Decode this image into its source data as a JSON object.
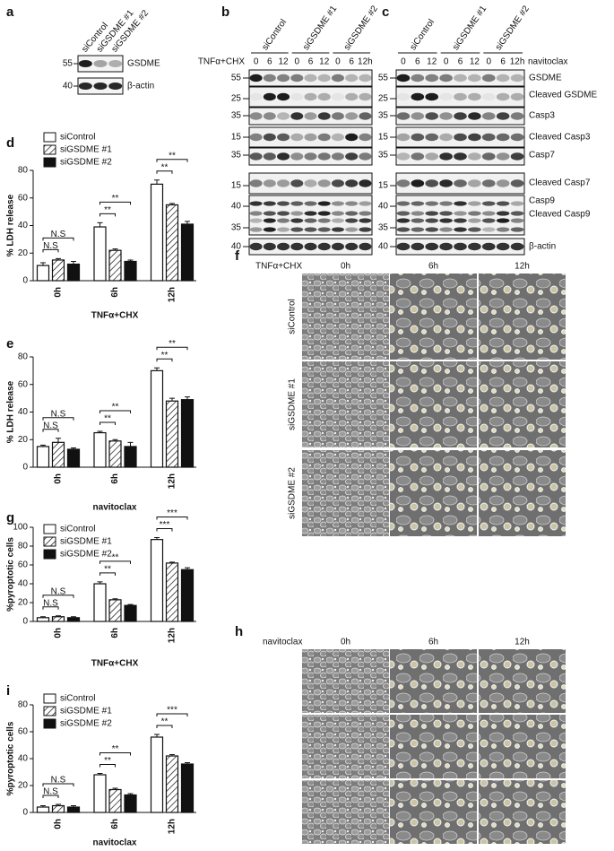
{
  "panel_labels": [
    "a",
    "b",
    "c",
    "d",
    "e",
    "f",
    "g",
    "h",
    "i"
  ],
  "blot_a": {
    "lanes": [
      "siControl",
      "siGSDME #1",
      "siGSDME #2"
    ],
    "markers": [
      55,
      40
    ],
    "bands": [
      "GSDME",
      "β-actin"
    ]
  },
  "blot_b": {
    "treatment": "TNFα+CHX",
    "groups": [
      "siControl",
      "siGSDME #1",
      "siGSDME #2"
    ],
    "lanes": [
      "0",
      "6",
      "12",
      "0",
      "6",
      "12",
      "0",
      "6",
      "12h"
    ],
    "markers": [
      55,
      25,
      35,
      15,
      35,
      15,
      40,
      35,
      40
    ]
  },
  "blot_c": {
    "treatment": "navitoclax",
    "groups": [
      "siControl",
      "siGSDME #1",
      "siGSDME #2"
    ],
    "lanes": [
      "0",
      "6",
      "12",
      "0",
      "6",
      "12",
      "0",
      "6",
      "12h"
    ],
    "markers": [
      55,
      25,
      35,
      15,
      35,
      15,
      40,
      35,
      40
    ],
    "bands": [
      "GSDME",
      "Cleaved GSDME",
      "Casp3",
      "Cleaved Casp3",
      "Casp7",
      "Cleaved Casp7",
      "Casp9",
      "Cleaved Casp9",
      "β-actin"
    ]
  },
  "chart_data": [
    {
      "type": "bar",
      "ylabel": "% LDH release",
      "xlabel": "TNFα+CHX",
      "categories": [
        "0h",
        "6h",
        "12h"
      ],
      "ylim": [
        0,
        80
      ],
      "yticks": [
        0,
        20,
        40,
        60,
        80
      ],
      "legend": true,
      "series": [
        {
          "name": "siControl",
          "color": "#ffffff",
          "hatch": false,
          "values": [
            11,
            39,
            70
          ],
          "errors": [
            2,
            3,
            3
          ]
        },
        {
          "name": "siGSDME #1",
          "color": "#ffffff",
          "hatch": true,
          "values": [
            15,
            22,
            55
          ],
          "errors": [
            1,
            1,
            1
          ]
        },
        {
          "name": "siGSDME #2",
          "color": "#111111",
          "hatch": false,
          "values": [
            12,
            14,
            41
          ],
          "errors": [
            2,
            1,
            2
          ]
        }
      ],
      "significance": [
        {
          "category": "0h",
          "pair": [
            "siControl",
            "siGSDME #1"
          ],
          "label": "N.S"
        },
        {
          "category": "0h",
          "pair": [
            "siControl",
            "siGSDME #2"
          ],
          "label": "N.S"
        },
        {
          "category": "6h",
          "pair": [
            "siControl",
            "siGSDME #1"
          ],
          "label": "**"
        },
        {
          "category": "6h",
          "pair": [
            "siControl",
            "siGSDME #2"
          ],
          "label": "**"
        },
        {
          "category": "12h",
          "pair": [
            "siControl",
            "siGSDME #1"
          ],
          "label": "**"
        },
        {
          "category": "12h",
          "pair": [
            "siControl",
            "siGSDME #2"
          ],
          "label": "**"
        }
      ]
    },
    {
      "type": "bar",
      "ylabel": "% LDH release",
      "xlabel": "navitoclax",
      "categories": [
        "0h",
        "6h",
        "12h"
      ],
      "ylim": [
        0,
        80
      ],
      "yticks": [
        0,
        20,
        40,
        60,
        80
      ],
      "legend": false,
      "series": [
        {
          "name": "siControl",
          "color": "#ffffff",
          "hatch": false,
          "values": [
            15,
            25,
            70
          ],
          "errors": [
            1,
            1,
            2
          ]
        },
        {
          "name": "siGSDME #1",
          "color": "#ffffff",
          "hatch": true,
          "values": [
            18,
            19,
            48
          ],
          "errors": [
            3,
            1,
            2
          ]
        },
        {
          "name": "siGSDME #2",
          "color": "#111111",
          "hatch": false,
          "values": [
            13,
            15,
            49
          ],
          "errors": [
            1,
            3,
            2
          ]
        }
      ],
      "significance": [
        {
          "category": "0h",
          "pair": [
            "siControl",
            "siGSDME #1"
          ],
          "label": "N.S"
        },
        {
          "category": "0h",
          "pair": [
            "siControl",
            "siGSDME #2"
          ],
          "label": "N.S"
        },
        {
          "category": "6h",
          "pair": [
            "siControl",
            "siGSDME #1"
          ],
          "label": "**"
        },
        {
          "category": "6h",
          "pair": [
            "siControl",
            "siGSDME #2"
          ],
          "label": "**"
        },
        {
          "category": "12h",
          "pair": [
            "siControl",
            "siGSDME #1"
          ],
          "label": "**"
        },
        {
          "category": "12h",
          "pair": [
            "siControl",
            "siGSDME #2"
          ],
          "label": "**"
        }
      ]
    },
    {
      "type": "bar",
      "ylabel": "%pyroptotic cells",
      "xlabel": "TNFα+CHX",
      "categories": [
        "0h",
        "6h",
        "12h"
      ],
      "ylim": [
        0,
        100
      ],
      "yticks": [
        0,
        20,
        40,
        60,
        80,
        100
      ],
      "legend": true,
      "series": [
        {
          "name": "siControl",
          "color": "#ffffff",
          "hatch": false,
          "values": [
            4,
            40,
            87
          ],
          "errors": [
            1,
            2,
            2
          ]
        },
        {
          "name": "siGSDME #1",
          "color": "#ffffff",
          "hatch": true,
          "values": [
            5,
            23,
            62
          ],
          "errors": [
            1,
            1,
            1
          ]
        },
        {
          "name": "siGSDME #2",
          "color": "#111111",
          "hatch": false,
          "values": [
            4,
            17,
            55
          ],
          "errors": [
            1,
            1,
            2
          ]
        }
      ],
      "significance": [
        {
          "category": "0h",
          "pair": [
            "siControl",
            "siGSDME #1"
          ],
          "label": "N.S"
        },
        {
          "category": "0h",
          "pair": [
            "siControl",
            "siGSDME #2"
          ],
          "label": "N.S"
        },
        {
          "category": "6h",
          "pair": [
            "siControl",
            "siGSDME #1"
          ],
          "label": "**"
        },
        {
          "category": "6h",
          "pair": [
            "siControl",
            "siGSDME #2"
          ],
          "label": "**"
        },
        {
          "category": "12h",
          "pair": [
            "siControl",
            "siGSDME #1"
          ],
          "label": "***"
        },
        {
          "category": "12h",
          "pair": [
            "siControl",
            "siGSDME #2"
          ],
          "label": "***"
        }
      ]
    },
    {
      "type": "bar",
      "ylabel": "%pyroptotic cells",
      "xlabel": "navitoclax",
      "categories": [
        "0h",
        "6h",
        "12h"
      ],
      "ylim": [
        0,
        80
      ],
      "yticks": [
        0,
        20,
        40,
        60,
        80
      ],
      "legend": true,
      "series": [
        {
          "name": "siControl",
          "color": "#ffffff",
          "hatch": false,
          "values": [
            4,
            28,
            56
          ],
          "errors": [
            1,
            1,
            2
          ]
        },
        {
          "name": "siGSDME #1",
          "color": "#ffffff",
          "hatch": true,
          "values": [
            5,
            17,
            42
          ],
          "errors": [
            1,
            1,
            1
          ]
        },
        {
          "name": "siGSDME #2",
          "color": "#111111",
          "hatch": false,
          "values": [
            4,
            13,
            36
          ],
          "errors": [
            1,
            1,
            1
          ]
        }
      ],
      "significance": [
        {
          "category": "0h",
          "pair": [
            "siControl",
            "siGSDME #1"
          ],
          "label": "N.S"
        },
        {
          "category": "0h",
          "pair": [
            "siControl",
            "siGSDME #2"
          ],
          "label": "N.S"
        },
        {
          "category": "6h",
          "pair": [
            "siControl",
            "siGSDME #1"
          ],
          "label": "**"
        },
        {
          "category": "6h",
          "pair": [
            "siControl",
            "siGSDME #2"
          ],
          "label": "**"
        },
        {
          "category": "12h",
          "pair": [
            "siControl",
            "siGSDME #1"
          ],
          "label": "**"
        },
        {
          "category": "12h",
          "pair": [
            "siControl",
            "siGSDME #2"
          ],
          "label": "***"
        }
      ]
    }
  ],
  "micro_f": {
    "treatment": "TNFα+CHX",
    "times": [
      "0h",
      "6h",
      "12h"
    ],
    "rows": [
      "siControl",
      "siGSDME #1",
      "siGSDME #2"
    ]
  },
  "micro_h": {
    "treatment": "navitoclax",
    "times": [
      "0h",
      "6h",
      "12h"
    ]
  }
}
